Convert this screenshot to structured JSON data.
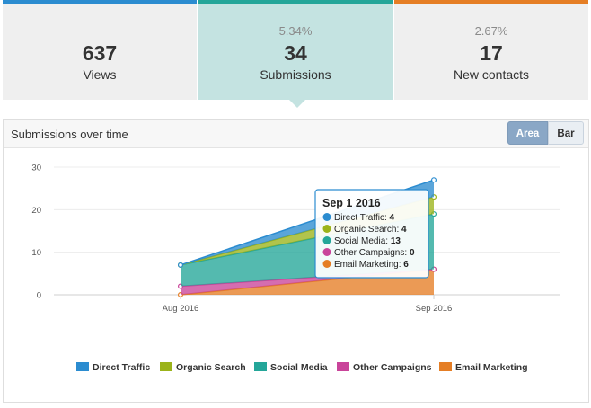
{
  "stats": [
    {
      "pct": "",
      "value": "637",
      "label": "Views",
      "color": "#2b8cd0"
    },
    {
      "pct": "5.34%",
      "value": "34",
      "label": "Submissions",
      "color": "#24a699"
    },
    {
      "pct": "2.67%",
      "value": "17",
      "label": "New contacts",
      "color": "#e57e25"
    }
  ],
  "panel": {
    "title": "Submissions over time",
    "area_label": "Area",
    "bar_label": "Bar"
  },
  "tooltip": {
    "title": "Sep 1 2016",
    "rows": [
      {
        "label": "Direct Traffic:",
        "value": "4",
        "color": "#2b8cd0"
      },
      {
        "label": "Organic Search:",
        "value": "4",
        "color": "#9bb31a"
      },
      {
        "label": "Social Media:",
        "value": "13",
        "color": "#24a699"
      },
      {
        "label": "Other Campaigns:",
        "value": "0",
        "color": "#c9449a"
      },
      {
        "label": "Email Marketing:",
        "value": "6",
        "color": "#e57e25"
      }
    ]
  },
  "chart_data": {
    "type": "area",
    "stacked": true,
    "categories": [
      "Aug 2016",
      "Sep 2016"
    ],
    "ylim": [
      0,
      30
    ],
    "yticks": [
      0,
      10,
      20,
      30
    ],
    "legend_position": "bottom",
    "series": [
      {
        "name": "Email Marketing",
        "color": "#e57e25",
        "values": [
          0,
          6
        ]
      },
      {
        "name": "Other Campaigns",
        "color": "#c9449a",
        "values": [
          2,
          0
        ]
      },
      {
        "name": "Social Media",
        "color": "#24a699",
        "values": [
          5,
          13
        ]
      },
      {
        "name": "Organic Search",
        "color": "#9bb31a",
        "values": [
          0,
          4
        ]
      },
      {
        "name": "Direct Traffic",
        "color": "#2b8cd0",
        "values": [
          0,
          4
        ]
      }
    ],
    "legend_order": [
      "Direct Traffic",
      "Organic Search",
      "Social Media",
      "Other Campaigns",
      "Email Marketing"
    ]
  }
}
